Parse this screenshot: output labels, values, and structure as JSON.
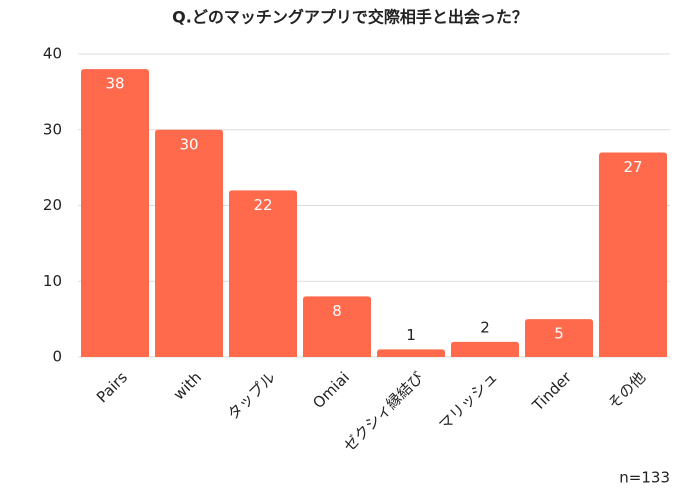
{
  "chart_data": {
    "type": "bar",
    "title": "Q.どのマッチングアプリで交際相手と出会った？",
    "categories": [
      "Pairs",
      "with",
      "タップル",
      "Omiai",
      "ゼクシィ縁結び",
      "マリッシュ",
      "Tinder",
      "その他"
    ],
    "values": [
      38,
      30,
      22,
      8,
      1,
      2,
      5,
      27
    ],
    "color": "#ff6a4d",
    "ylim": [
      0,
      40
    ],
    "yticks": [
      0,
      10,
      20,
      30,
      40
    ],
    "grid": true,
    "annotation": "n=133"
  }
}
